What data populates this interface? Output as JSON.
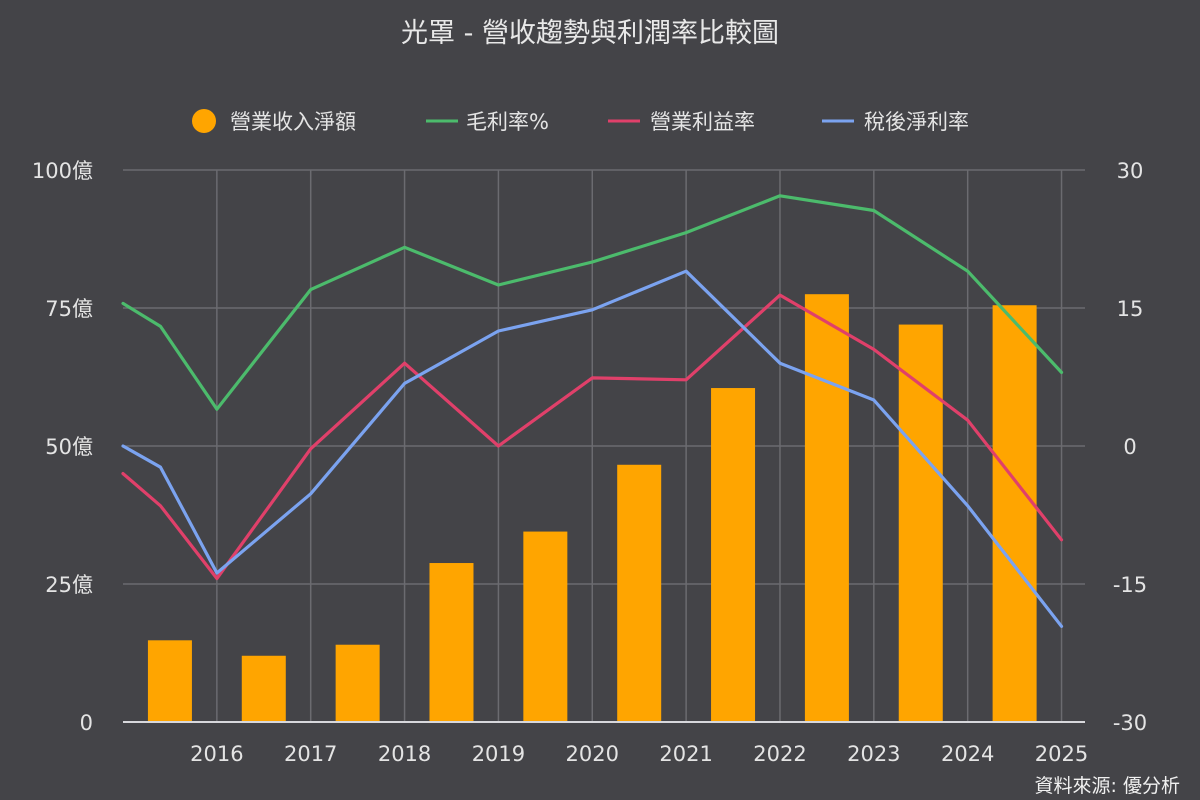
{
  "colors": {
    "background": "#444448",
    "grid": "#6b6b70",
    "bar": "#FFA500",
    "gross": "#4CBB6C",
    "operating": "#E0406A",
    "net": "#7BA3F0"
  },
  "chart_data": {
    "type": "bar+line",
    "title": "光罩 - 營收趨勢與利潤率比較圖",
    "source": "資料來源: 優分析",
    "x_ticks": [
      "2016",
      "2017",
      "2018",
      "2019",
      "2020",
      "2021",
      "2022",
      "2023",
      "2024",
      "2025"
    ],
    "bars": {
      "name": "營業收入淨額",
      "x": [
        2015.5,
        2016.5,
        2017.5,
        2018.5,
        2019.5,
        2020.5,
        2021.5,
        2022.5,
        2023.5,
        2024.5
      ],
      "values": [
        14.8,
        12.0,
        14.0,
        28.8,
        34.5,
        46.6,
        60.5,
        77.5,
        72.0,
        75.5
      ]
    },
    "lines": [
      {
        "name": "毛利率%",
        "color": "#4CBB6C",
        "x": [
          2015,
          2015.4,
          2016,
          2017,
          2018,
          2019,
          2020,
          2021,
          2022,
          2023,
          2024,
          2025
        ],
        "values": [
          15.5,
          13.0,
          4.0,
          17.0,
          21.6,
          17.5,
          20.0,
          23.2,
          27.2,
          25.6,
          19.0,
          8.0
        ]
      },
      {
        "name": "營業利益率",
        "color": "#E0406A",
        "x": [
          2015,
          2015.4,
          2016,
          2017,
          2018,
          2019,
          2020,
          2021,
          2022,
          2023,
          2024,
          2025
        ],
        "values": [
          -3.0,
          -6.5,
          -14.4,
          -0.3,
          9.0,
          0.0,
          7.4,
          7.2,
          16.4,
          10.5,
          2.8,
          -10.2
        ]
      },
      {
        "name": "稅後淨利率",
        "color": "#7BA3F0",
        "x": [
          2015,
          2015.4,
          2016,
          2017,
          2018,
          2019,
          2020,
          2021,
          2022,
          2023,
          2024,
          2025
        ],
        "values": [
          0.0,
          -2.3,
          -13.8,
          -5.2,
          6.8,
          12.5,
          14.8,
          19.0,
          9.0,
          5.0,
          -6.5,
          -19.6
        ]
      }
    ],
    "y_left": {
      "ticks": [
        "0",
        "25億",
        "50億",
        "75億",
        "100億"
      ],
      "values": [
        0,
        25,
        50,
        75,
        100
      ],
      "range": [
        0,
        100
      ]
    },
    "y_right": {
      "ticks": [
        "-30",
        "-15",
        "0",
        "15",
        "30"
      ],
      "values": [
        -30,
        -15,
        0,
        15,
        30
      ],
      "range": [
        -30,
        30
      ]
    },
    "x_range": [
      2015,
      2025.25
    ],
    "grid": true,
    "legend_position": "top"
  }
}
